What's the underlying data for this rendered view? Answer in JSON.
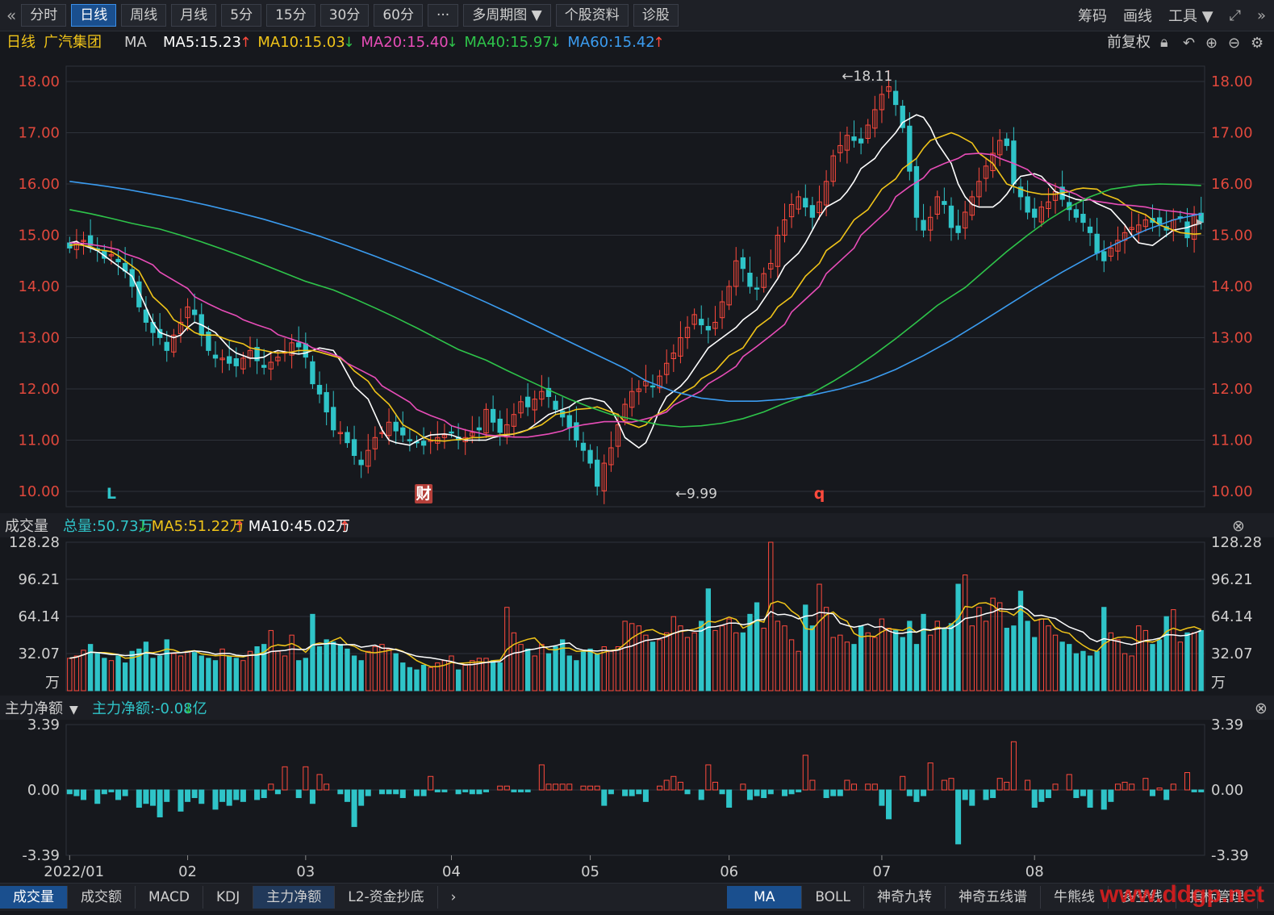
{
  "toolbar": {
    "back_icon": "double-left-arrow-icon",
    "buttons": [
      "分时",
      "日线",
      "周线",
      "月线",
      "5分",
      "15分",
      "30分",
      "60分",
      "···",
      "多周期图 ▼",
      "个股资料",
      "诊股"
    ],
    "active": "日线",
    "right": [
      "筹码",
      "画线",
      "工具 ▼"
    ]
  },
  "legend": {
    "period": "日线",
    "stock": "广汽集团",
    "ma_label": "MA",
    "items": [
      {
        "text": "MA5:15.23",
        "arrow": "up",
        "color": "#ffffff"
      },
      {
        "text": "MA10:15.03",
        "arrow": "down",
        "color": "#f0c419"
      },
      {
        "text": "MA20:15.40",
        "arrow": "down",
        "color": "#e84db8"
      },
      {
        "text": "MA40:15.97",
        "arrow": "down",
        "color": "#2ec44a"
      },
      {
        "text": "MA60:15.42",
        "arrow": "up",
        "color": "#3b9cf0"
      }
    ],
    "adjust": "前复权"
  },
  "chart_data": [
    {
      "type": "candlestick",
      "title": "广汽集团 日线",
      "y_ticks": [
        "18.00",
        "17.00",
        "16.00",
        "15.00",
        "14.00",
        "13.00",
        "12.00",
        "11.00",
        "10.00"
      ],
      "ylim": [
        9.7,
        18.3
      ],
      "x_labels": [
        "2022/01",
        "02",
        "03",
        "04",
        "05",
        "06",
        "07",
        "08"
      ],
      "label_idx": [
        0,
        17,
        34,
        55,
        75,
        95,
        117,
        139
      ],
      "annotations": [
        {
          "text": "←18.11",
          "at": 111,
          "value": 18.11
        },
        {
          "text": "←9.99",
          "at": 87,
          "value": 9.99
        }
      ],
      "markers": [
        {
          "text": "L",
          "at": 6,
          "color": "#2fc4c8"
        },
        {
          "text": "财",
          "at": 51,
          "color": "#ffffff",
          "bg": "#b5403a"
        },
        {
          "text": "q",
          "at": 108,
          "color": "#ff4a3d"
        }
      ],
      "close_series": [
        14.75,
        14.85,
        14.9,
        14.8,
        14.7,
        14.55,
        14.62,
        14.48,
        14.3,
        14.0,
        13.6,
        13.3,
        13.1,
        13.0,
        12.75,
        13.05,
        13.3,
        13.6,
        13.45,
        13.05,
        12.75,
        12.6,
        12.6,
        12.5,
        12.45,
        12.6,
        12.75,
        12.55,
        12.42,
        12.52,
        12.62,
        12.72,
        12.9,
        12.82,
        12.62,
        12.1,
        11.9,
        11.55,
        11.2,
        11.15,
        10.95,
        10.7,
        10.52,
        10.8,
        11.05,
        11.15,
        11.35,
        11.18,
        11.1,
        11.0,
        10.95,
        10.9,
        11.0,
        11.05,
        11.1,
        11.15,
        11.0,
        11.05,
        11.15,
        11.2,
        11.6,
        11.35,
        11.15,
        11.3,
        11.5,
        11.75,
        11.65,
        11.8,
        11.95,
        11.85,
        11.6,
        11.45,
        11.25,
        11.0,
        10.8,
        10.55,
        10.1,
        10.55,
        10.85,
        11.3,
        11.7,
        11.95,
        12.0,
        12.15,
        12.05,
        12.25,
        12.5,
        12.7,
        13.0,
        13.2,
        13.45,
        13.25,
        13.15,
        13.3,
        13.7,
        14.0,
        14.5,
        14.35,
        14.0,
        13.95,
        14.25,
        14.45,
        15.0,
        15.3,
        15.6,
        15.75,
        15.55,
        15.35,
        15.65,
        16.05,
        16.55,
        16.75,
        16.95,
        16.85,
        16.8,
        17.15,
        17.45,
        17.75,
        17.9,
        17.55,
        17.1,
        16.25,
        15.35,
        15.1,
        15.35,
        15.75,
        15.6,
        15.15,
        15.05,
        15.45,
        15.75,
        16.05,
        16.35,
        16.6,
        16.85,
        16.75,
        16.0,
        15.75,
        15.45,
        15.35,
        15.55,
        15.65,
        15.85,
        15.7,
        15.5,
        15.35,
        15.25,
        15.05,
        14.65,
        14.5,
        14.75,
        14.9,
        15.05,
        15.15,
        15.2,
        15.3,
        15.25,
        15.23,
        15.1,
        15.3,
        15.35,
        14.95,
        15.4,
        15.25
      ],
      "ma_series": [
        {
          "name": "MA5",
          "color": "#ffffff",
          "values": [
            14.85,
            14.88,
            14.8,
            14.7,
            14.6,
            14.5,
            14.4,
            14.2,
            13.9,
            13.6,
            13.3,
            13.1,
            13.0,
            13.05,
            13.2,
            13.3,
            13.25,
            13.1,
            12.95,
            12.8,
            12.7,
            12.6,
            12.6,
            12.62,
            12.7,
            12.75,
            12.7,
            12.68,
            12.7,
            12.75,
            12.8,
            12.75,
            12.55,
            12.3,
            12.05,
            11.8,
            11.5,
            11.2,
            11.0,
            10.95,
            10.9,
            10.98,
            11.05,
            11.1,
            11.12,
            11.1,
            11.05,
            11.0,
            11.0,
            11.0,
            11.05,
            11.08,
            11.1,
            11.12,
            11.2,
            11.3,
            11.4,
            11.5,
            11.6,
            11.65,
            11.75,
            11.8,
            11.82,
            11.75,
            11.6,
            11.35,
            11.05,
            10.85,
            10.95,
            11.25,
            11.6,
            11.85,
            12.05,
            12.2,
            12.4,
            12.6,
            12.8,
            13.0,
            13.1,
            13.2,
            13.35,
            13.55,
            13.75,
            13.95,
            14.15,
            14.4,
            14.65,
            14.85,
            15.1,
            15.35,
            15.55,
            15.7,
            15.85,
            16.05,
            16.3,
            16.5,
            16.7,
            16.85,
            17.0,
            17.2,
            17.35,
            17.3,
            17.1,
            16.8,
            16.4,
            16.0,
            15.75,
            15.6,
            15.55,
            15.55,
            15.65,
            15.8,
            16.0,
            16.15,
            16.2,
            16.15,
            16.0,
            15.85,
            15.75,
            15.7,
            15.68,
            15.7,
            15.62,
            15.5,
            15.35,
            15.2,
            15.0,
            14.85,
            14.8,
            14.9,
            15.0,
            15.1,
            15.15,
            15.2,
            15.23
          ]
        },
        {
          "name": "MA10",
          "color": "#f0c419",
          "values": [
            14.8,
            14.82,
            14.78,
            14.72,
            14.68,
            14.6,
            14.5,
            14.3,
            14.05,
            13.8,
            13.55,
            13.35,
            13.2,
            13.1,
            13.05,
            13.05,
            13.0,
            12.95,
            12.88,
            12.8,
            12.75,
            12.72,
            12.7,
            12.72,
            12.75,
            12.75,
            12.72,
            12.68,
            12.6,
            12.5,
            12.35,
            12.15,
            11.95,
            11.7,
            11.5,
            11.3,
            11.15,
            11.05,
            11.0,
            10.98,
            11.0,
            11.02,
            11.05,
            11.05,
            11.08,
            11.1,
            11.12,
            11.15,
            11.2,
            11.3,
            11.4,
            11.5,
            11.55,
            11.6,
            11.62,
            11.65,
            11.6,
            11.5,
            11.35,
            11.25,
            11.3,
            11.45,
            11.6,
            11.75,
            11.9,
            12.05,
            12.2,
            12.35,
            12.5,
            12.65,
            12.8,
            13.0,
            13.2,
            13.4,
            13.6,
            13.8,
            14.0,
            14.2,
            14.45,
            14.7,
            14.9,
            15.1,
            15.3,
            15.5,
            15.7,
            15.9,
            16.1,
            16.3,
            16.5,
            16.7,
            16.85,
            16.95,
            17.0,
            16.95,
            16.8,
            16.6,
            16.4,
            16.2,
            16.0,
            15.9,
            15.85,
            15.8,
            15.8,
            15.8,
            15.85,
            15.9,
            15.92,
            15.9,
            15.8,
            15.7,
            15.6,
            15.5,
            15.4,
            15.3,
            15.2,
            15.1,
            15.05,
            15.02,
            15.03
          ]
        },
        {
          "name": "MA20",
          "color": "#e84db8",
          "values": [
            14.85,
            14.84,
            14.82,
            14.78,
            14.72,
            14.64,
            14.55,
            14.42,
            14.28,
            14.12,
            13.96,
            13.8,
            13.66,
            13.53,
            13.43,
            13.35,
            13.25,
            13.16,
            13.06,
            12.97,
            12.88,
            12.8,
            12.72,
            12.62,
            12.5,
            12.36,
            12.22,
            12.06,
            11.9,
            11.74,
            11.6,
            11.48,
            11.38,
            11.28,
            11.2,
            11.14,
            11.1,
            11.08,
            11.06,
            11.06,
            11.08,
            11.12,
            11.18,
            11.24,
            11.3,
            11.34,
            11.36,
            11.36,
            11.35,
            11.38,
            11.45,
            11.55,
            11.68,
            11.82,
            11.96,
            12.1,
            12.26,
            12.44,
            12.63,
            12.83,
            13.04,
            13.26,
            13.5,
            13.75,
            14.0,
            14.25,
            14.5,
            14.75,
            15.0,
            15.25,
            15.5,
            15.75,
            15.95,
            16.12,
            16.28,
            16.4,
            16.5,
            16.58,
            16.6,
            16.57,
            16.5,
            16.4,
            16.28,
            16.15,
            16.02,
            15.9,
            15.8,
            15.72,
            15.66,
            15.62,
            15.6,
            15.58,
            15.55,
            15.52,
            15.48,
            15.45,
            15.42,
            15.4
          ]
        },
        {
          "name": "MA40",
          "color": "#2ec44a",
          "values": [
            15.5,
            15.42,
            15.33,
            15.23,
            15.12,
            15.0,
            14.87,
            14.73,
            14.58,
            14.42,
            14.26,
            14.1,
            13.93,
            13.76,
            13.58,
            13.39,
            13.19,
            12.98,
            12.77,
            12.56,
            12.36,
            12.17,
            11.98,
            11.8,
            11.64,
            11.5,
            11.38,
            11.3,
            11.26,
            11.28,
            11.33,
            11.42,
            11.55,
            11.72,
            11.92,
            12.15,
            12.4,
            12.68,
            12.98,
            13.3,
            13.63,
            13.98,
            14.33,
            14.68,
            15.0,
            15.3,
            15.55,
            15.75,
            15.9,
            15.98,
            16.0,
            15.99,
            15.97
          ]
        },
        {
          "name": "MA60",
          "color": "#3b9cf0",
          "values": [
            16.05,
            15.98,
            15.9,
            15.8,
            15.7,
            15.58,
            15.45,
            15.31,
            15.15,
            14.98,
            14.79,
            14.59,
            14.38,
            14.16,
            13.93,
            13.69,
            13.44,
            13.18,
            12.92,
            12.66,
            12.4,
            12.16,
            11.95,
            11.82,
            11.76,
            11.76,
            11.8,
            11.88,
            12.0,
            12.16,
            12.38,
            12.65,
            12.95,
            13.28,
            13.62,
            13.96,
            14.28,
            14.58,
            14.85,
            15.1,
            15.3,
            15.42
          ]
        }
      ]
    },
    {
      "type": "bar",
      "title": "成交量",
      "unit": "万",
      "y_ticks": [
        "128.28",
        "96.21",
        "64.14",
        "32.07"
      ],
      "ylim": [
        0,
        128.28
      ],
      "legend": [
        {
          "text": "总量:50.73万",
          "arrow": "down",
          "color": "#2fc4c8"
        },
        {
          "text": "MA5:51.22万",
          "arrow": "up",
          "color": "#f0c419"
        },
        {
          "text": "MA10:45.02万",
          "arrow": "up",
          "color": "#ffffff"
        }
      ],
      "values": [
        28,
        30,
        35,
        40,
        32,
        28,
        26,
        30,
        24,
        34,
        36,
        42,
        28,
        30,
        44,
        32,
        30,
        34,
        33,
        30,
        28,
        26,
        36,
        30,
        28,
        26,
        34,
        38,
        40,
        52,
        34,
        30,
        48,
        26,
        28,
        66,
        38,
        44,
        42,
        40,
        36,
        30,
        26,
        34,
        38,
        40,
        36,
        32,
        24,
        20,
        18,
        22,
        20,
        24,
        26,
        30,
        18,
        22,
        26,
        28,
        28,
        26,
        24,
        72,
        50,
        40,
        36,
        30,
        40,
        32,
        38,
        44,
        30,
        26,
        34,
        36,
        32,
        38,
        34,
        38,
        60,
        58,
        56,
        48,
        42,
        44,
        50,
        64,
        56,
        46,
        50,
        60,
        88,
        52,
        56,
        62,
        50,
        50,
        66,
        76,
        54,
        130,
        60,
        56,
        44,
        34,
        74,
        56,
        92,
        72,
        46,
        48,
        42,
        40,
        56,
        50,
        46,
        62,
        54,
        52,
        46,
        60,
        40,
        66,
        48,
        60,
        54,
        58,
        92,
        100,
        56,
        72,
        60,
        80,
        76,
        54,
        56,
        86,
        60,
        46,
        62,
        56,
        48,
        42,
        40,
        32,
        34,
        30,
        34,
        72,
        50,
        44,
        32,
        30,
        56,
        52,
        40,
        44,
        64,
        70,
        42,
        50,
        50,
        52
      ]
    },
    {
      "type": "bar",
      "title": "主力净额",
      "y_ticks": [
        "3.39",
        "0.00",
        "-3.39"
      ],
      "ylim": [
        -3.39,
        3.39
      ],
      "legend": [
        {
          "text": "主力净额:-0.08亿",
          "arrow": "down",
          "color": "#2fc4c8"
        }
      ],
      "values": [
        -0.2,
        -0.3,
        -0.5,
        -0.7,
        -0.2,
        -0.1,
        -0.5,
        -0.3,
        -0.9,
        -0.7,
        -0.8,
        -1.4,
        -0.6,
        -1.1,
        -0.6,
        -0.4,
        -0.7,
        -1.0,
        -0.6,
        -0.8,
        -0.5,
        -0.6,
        -0.5,
        -0.4,
        0.3,
        -0.2,
        1.2,
        -0.4,
        1.2,
        -0.7,
        0.8,
        0.3,
        -0.2,
        -0.6,
        -1.9,
        -0.8,
        -0.3,
        -0.2,
        -0.2,
        -0.2,
        -0.4,
        -0.3,
        -0.3,
        0.7,
        -0.1,
        -0.1,
        -0.2,
        -0.1,
        -0.2,
        -0.2,
        -0.1,
        0.2,
        0.2,
        -0.1,
        -0.1,
        -0.1,
        1.3,
        0.3,
        0.3,
        0.3,
        0.3,
        0.2,
        0.2,
        0.2,
        -0.8,
        -0.2,
        -0.3,
        -0.3,
        -0.2,
        -0.6,
        0.2,
        0.5,
        0.7,
        0.4,
        -0.2,
        -0.5,
        1.3,
        0.4,
        -0.2,
        -0.9,
        0.3,
        -0.5,
        -0.3,
        -0.4,
        -0.2,
        -0.3,
        -0.2,
        -0.1,
        1.8,
        0.5,
        -0.4,
        -0.3,
        -0.3,
        0.5,
        0.3,
        0.3,
        0.3,
        -0.8,
        -1.5,
        0.7,
        -0.3,
        -0.6,
        -0.3,
        1.4,
        0.5,
        0.6,
        -2.8,
        -0.5,
        -0.8,
        -0.5,
        -0.4,
        0.6,
        0.4,
        2.5,
        0.5,
        -0.9,
        -0.6,
        -0.4,
        0.3,
        0.8,
        -0.4,
        -0.3,
        -0.9,
        -1.0,
        -0.6,
        0.3,
        0.4,
        0.3,
        0.6,
        -0.3,
        0.1,
        -0.5,
        0.3,
        0.9,
        -0.1,
        -0.1
      ]
    }
  ],
  "bottom_tabs": {
    "left": [
      "成交量",
      "成交额",
      "MACD",
      "KDJ",
      "主力净额",
      "L2-资金抄底"
    ],
    "active_left": "成交量",
    "right": [
      "MA",
      "BOLL",
      "神奇九转",
      "神奇五线谱",
      "牛熊线",
      "多空线",
      "指标管理"
    ],
    "active_right": "MA"
  },
  "watermark": "www.ddgp.net",
  "colors": {
    "up": "#ff4a3d",
    "down": "#2fc4c8",
    "grid": "#2e323a",
    "axis_text": "#e0483c"
  }
}
